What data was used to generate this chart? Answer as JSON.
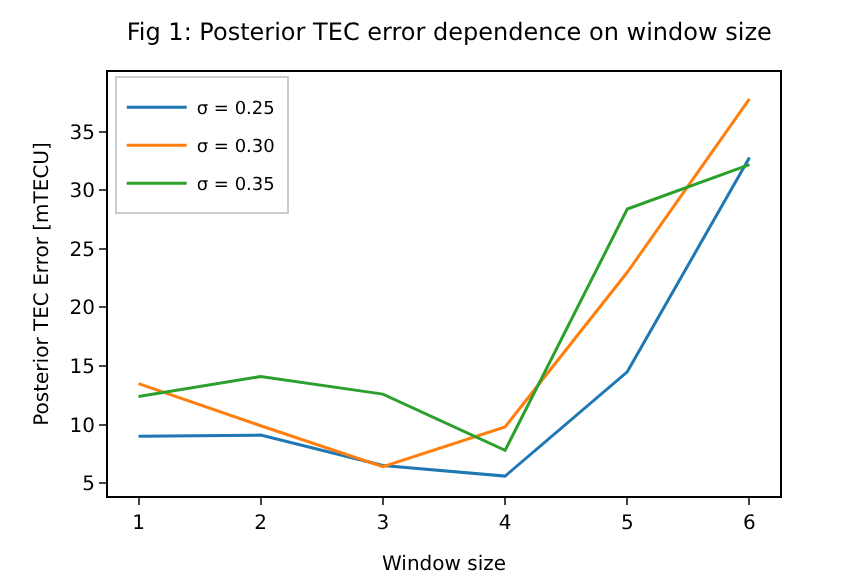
{
  "chart_data": {
    "type": "line",
    "title": "Fig 1: Posterior TEC error dependence on window size",
    "xlabel": "Window size",
    "ylabel": "Posterior TEC Error [mTECU]",
    "x": [
      1,
      2,
      3,
      4,
      5,
      6
    ],
    "xlim": [
      0.75,
      6.25
    ],
    "xticks": [
      1,
      2,
      3,
      4,
      5,
      6
    ],
    "ylim": [
      3.9,
      40.1
    ],
    "yticks": [
      5,
      10,
      15,
      20,
      25,
      30,
      35
    ],
    "grid": false,
    "legend": "top left",
    "marker": "none",
    "line_style": "solid",
    "series": [
      {
        "name": "σ = 0.25",
        "color": "#1f77b4",
        "values": [
          9.0,
          9.1,
          6.5,
          5.6,
          14.5,
          32.8
        ]
      },
      {
        "name": "σ = 0.30",
        "color": "#ff7f0e",
        "values": [
          13.5,
          9.9,
          6.4,
          9.8,
          23.0,
          37.8
        ]
      },
      {
        "name": "σ = 0.35",
        "color": "#2ca02c",
        "values": [
          12.4,
          14.1,
          12.6,
          7.8,
          28.4,
          32.2
        ]
      }
    ]
  }
}
